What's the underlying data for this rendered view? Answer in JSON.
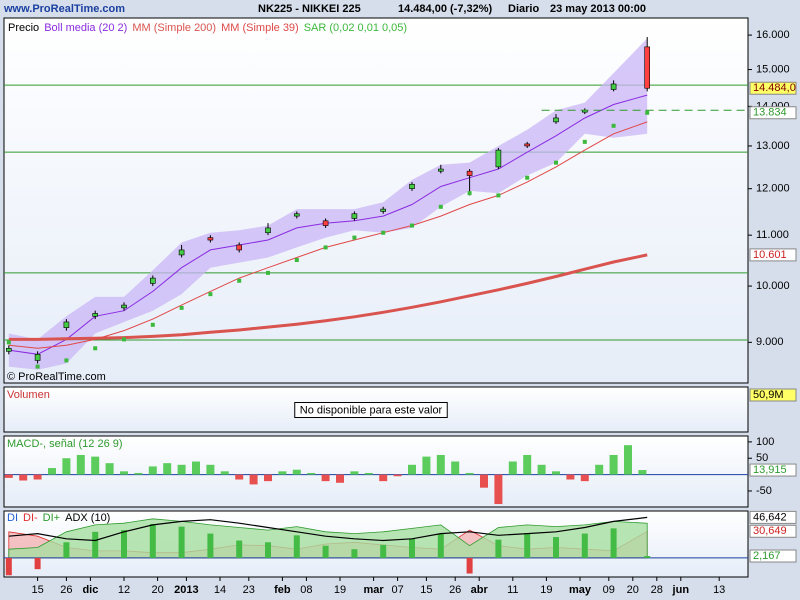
{
  "header": {
    "site": "www.ProRealTime.com",
    "symbol": "NK225 - NIKKEI 225",
    "price": "14.484,00 (-7,32%)",
    "period": "Diario",
    "date": "23 may 2013 00:00"
  },
  "chart_data": [
    {
      "type": "candlestick",
      "log": true,
      "watermark": "© ProRealTime.com",
      "x": [
        -6,
        0,
        6,
        12,
        18,
        24,
        30,
        36,
        42,
        48,
        54,
        60,
        66,
        72,
        78,
        84,
        90,
        96,
        102,
        108,
        114,
        120,
        127
      ],
      "ylim": [
        8340,
        16520
      ],
      "yticks": [
        {
          "value": 16000,
          "label": "16.000"
        },
        {
          "value": 15000,
          "label": "15.000"
        },
        {
          "value": 14000,
          "label": "14.000"
        },
        {
          "value": 13000,
          "label": "13.000"
        },
        {
          "value": 12000,
          "label": "12.000"
        },
        {
          "value": 11000,
          "label": "11.000"
        },
        {
          "value": 10000,
          "label": "10.000"
        },
        {
          "value": 9000,
          "label": "9.000"
        }
      ],
      "series": [
        {
          "name": "Precio",
          "kind": "candle",
          "color": "#000000",
          "up_color": "#44cc44",
          "down_color": "#ff4040",
          "open": [
            8850,
            8700,
            9250,
            9450,
            9600,
            10050,
            10600,
            10950,
            10800,
            11050,
            11400,
            11300,
            11350,
            11500,
            12000,
            12400,
            12400,
            12500,
            13050,
            13600,
            13850,
            14450,
            15650
          ],
          "high": [
            8950,
            8850,
            9400,
            9550,
            9700,
            10200,
            10800,
            11000,
            10850,
            11250,
            11500,
            11350,
            11500,
            11600,
            12150,
            12550,
            12450,
            12950,
            13100,
            13800,
            13950,
            14700,
            15942
          ],
          "low": [
            8800,
            8650,
            9200,
            9400,
            9550,
            10000,
            10550,
            10850,
            10650,
            11000,
            11350,
            11150,
            11300,
            11450,
            11950,
            12350,
            11850,
            12450,
            12950,
            13550,
            13800,
            14400,
            14400
          ],
          "close": [
            8900,
            8800,
            9350,
            9500,
            9650,
            10150,
            10700,
            10900,
            10700,
            11150,
            11450,
            11200,
            11450,
            11550,
            12100,
            12450,
            12300,
            12900,
            13000,
            13700,
            13900,
            14600,
            14484
          ]
        },
        {
          "name": "Boll media (20 2)",
          "kind": "band",
          "color": "#8a2be2",
          "fill": "#c9b6f6",
          "upper": [
            9150,
            9050,
            9450,
            9800,
            9800,
            10300,
            10850,
            11050,
            11100,
            11200,
            11550,
            11550,
            11550,
            11700,
            12200,
            12550,
            12600,
            13000,
            13400,
            13900,
            14100,
            14900,
            15900
          ],
          "middle": [
            8870,
            8800,
            9050,
            9450,
            9550,
            9900,
            10350,
            10700,
            10800,
            10900,
            11150,
            11250,
            11300,
            11400,
            11650,
            12050,
            12250,
            12450,
            12850,
            13250,
            13700,
            14050,
            14300
          ],
          "lower": [
            8600,
            8550,
            8650,
            9150,
            9350,
            9550,
            9850,
            10350,
            10450,
            10550,
            10750,
            10950,
            11100,
            11050,
            11150,
            11600,
            11950,
            11900,
            12300,
            12600,
            13300,
            13200,
            13300
          ]
        },
        {
          "name": "MM (Simple 200)",
          "kind": "line",
          "bold": true,
          "color": "#d9534f",
          "values": [
            9050,
            9050,
            9060,
            9070,
            9080,
            9100,
            9130,
            9170,
            9210,
            9260,
            9310,
            9370,
            9440,
            9520,
            9610,
            9710,
            9820,
            9930,
            10050,
            10180,
            10320,
            10460,
            10601
          ]
        },
        {
          "name": "MM (Simple 39)",
          "kind": "line",
          "bold": false,
          "color": "#e04848",
          "values": [
            8950,
            8900,
            8950,
            9050,
            9200,
            9400,
            9650,
            9900,
            10150,
            10350,
            10550,
            10750,
            10900,
            11050,
            11200,
            11400,
            11650,
            11850,
            12150,
            12500,
            12900,
            13300,
            13600
          ]
        },
        {
          "name": "SAR (0,02 0,01 0,05)",
          "kind": "dots",
          "color": "#3cb83c",
          "values": [
            9000,
            8600,
            8700,
            8900,
            9050,
            9300,
            9600,
            9850,
            10100,
            10250,
            10500,
            10750,
            10950,
            11050,
            11200,
            11600,
            11900,
            11850,
            12250,
            12600,
            13100,
            13500,
            13834
          ]
        }
      ],
      "hlines": [
        14570,
        12850,
        10250,
        9040
      ],
      "hline_color": "#2e9a2e",
      "dashline": {
        "value": 13900,
        "from": 105,
        "color": "#2e9a2e"
      },
      "value_boxes": [
        {
          "value": 14484,
          "label": "14.484,0",
          "color": "#800000",
          "fill": "#ffff66"
        },
        {
          "value": 13834,
          "label": "13.834",
          "color": "#2e9a2e",
          "fill": "#ffffff"
        },
        {
          "value": 10601,
          "label": "10.601",
          "color": "#cc2222",
          "fill": "#ffffff"
        }
      ]
    },
    {
      "type": "bar",
      "title": "Volumen",
      "title_color": "#cc3333",
      "note": "No disponible para este valor",
      "last_label": "50,9M"
    },
    {
      "type": "bar",
      "title": "MACD-, señal (12 26 9)",
      "title_color": "#2e9a2e",
      "up_color": "#5ccc5c",
      "down_color": "#e85050",
      "x": [
        -6,
        -3,
        0,
        3,
        6,
        9,
        12,
        15,
        18,
        21,
        24,
        27,
        30,
        33,
        36,
        39,
        42,
        45,
        48,
        51,
        54,
        57,
        60,
        63,
        66,
        69,
        72,
        75,
        78,
        81,
        84,
        87,
        90,
        93,
        96,
        99,
        102,
        105,
        108,
        111,
        114,
        117,
        120,
        123,
        126
      ],
      "values": [
        -10,
        -18,
        -15,
        20,
        50,
        60,
        55,
        35,
        10,
        5,
        25,
        35,
        30,
        40,
        30,
        10,
        -15,
        -30,
        -20,
        10,
        15,
        5,
        -20,
        -25,
        10,
        5,
        -20,
        -5,
        30,
        55,
        60,
        40,
        5,
        -40,
        -90,
        40,
        60,
        30,
        10,
        -15,
        -20,
        30,
        60,
        90,
        13.915
      ],
      "ylim": [
        -99,
        118
      ],
      "yticks": [
        100,
        50,
        -50
      ],
      "value_boxes": [
        {
          "value": 13.915,
          "label": "13,915",
          "color": "#2e9a2e",
          "fill": "#ffffff"
        }
      ]
    },
    {
      "type": "mixed",
      "x": [
        -6,
        0,
        6,
        12,
        18,
        24,
        30,
        36,
        42,
        48,
        54,
        60,
        66,
        72,
        78,
        84,
        90,
        96,
        102,
        108,
        114,
        120,
        127
      ],
      "series": [
        {
          "name": "DI",
          "kind": "bars",
          "color": "#2060d0",
          "up_color": "#44bb44",
          "down_color": "#e04040",
          "values": [
            -20,
            -13,
            18,
            30,
            32,
            39,
            36,
            28,
            20,
            18,
            26,
            14,
            10,
            15,
            22,
            28,
            -18,
            21,
            28,
            24,
            28,
            34,
            2.167
          ]
        },
        {
          "name": "DI-",
          "kind": "area",
          "color": "#e03030",
          "fill": "#f4b4b4",
          "values": [
            30,
            25,
            12,
            8,
            8,
            6,
            6,
            10,
            15,
            14,
            10,
            16,
            18,
            15,
            12,
            10,
            32,
            14,
            10,
            12,
            10,
            8,
            30.649
          ]
        },
        {
          "name": "DI+",
          "kind": "area",
          "color": "#2e9a2e",
          "fill": "#a6dea0",
          "values": [
            10,
            12,
            30,
            38,
            40,
            45,
            42,
            38,
            35,
            32,
            36,
            30,
            28,
            30,
            34,
            38,
            14,
            35,
            38,
            36,
            38,
            42,
            40
          ]
        },
        {
          "name": "ADX (10)",
          "kind": "line",
          "color": "#000000",
          "values": [
            25,
            28,
            22,
            20,
            30,
            38,
            42,
            44,
            40,
            35,
            30,
            25,
            22,
            20,
            22,
            28,
            30,
            26,
            28,
            30,
            35,
            42,
            46.642
          ]
        }
      ],
      "ylim": [
        -22,
        54
      ],
      "value_boxes": [
        {
          "value": 46.642,
          "label": "46,642",
          "color": "#000000",
          "fill": "#ffffff"
        },
        {
          "value": 30.649,
          "label": "30,649",
          "color": "#cc2222",
          "fill": "#ffffff"
        },
        {
          "value": 2.167,
          "label": "2,167",
          "color": "#2e9a2e",
          "fill": "#ffffff"
        }
      ],
      "xlim": [
        -7,
        148
      ],
      "xticks": [
        {
          "value": 0,
          "label": "15"
        },
        {
          "value": 6,
          "label": "26"
        },
        {
          "value": 11,
          "label": "dic"
        },
        {
          "value": 18,
          "label": "12"
        },
        {
          "value": 25,
          "label": "20"
        },
        {
          "value": 31,
          "label": "2013"
        },
        {
          "value": 38,
          "label": "14"
        },
        {
          "value": 44,
          "label": "23"
        },
        {
          "value": 51,
          "label": "feb"
        },
        {
          "value": 56,
          "label": "08"
        },
        {
          "value": 63,
          "label": "19"
        },
        {
          "value": 70,
          "label": "mar"
        },
        {
          "value": 75,
          "label": "07"
        },
        {
          "value": 81,
          "label": "15"
        },
        {
          "value": 87,
          "label": "26"
        },
        {
          "value": 92,
          "label": "abr"
        },
        {
          "value": 99,
          "label": "11"
        },
        {
          "value": 106,
          "label": "19"
        },
        {
          "value": 113,
          "label": "may"
        },
        {
          "value": 119,
          "label": "09"
        },
        {
          "value": 124,
          "label": "20"
        },
        {
          "value": 129,
          "label": "28"
        },
        {
          "value": 134,
          "label": "jun"
        },
        {
          "value": 142,
          "label": "13"
        }
      ]
    }
  ]
}
